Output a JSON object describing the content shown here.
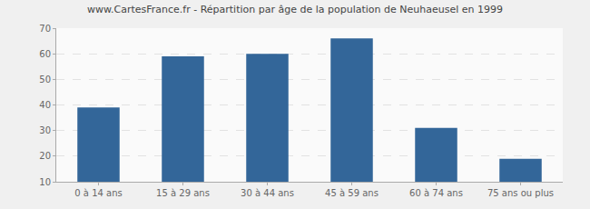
{
  "chart_data": {
    "type": "bar",
    "title": "www.CartesFrance.fr - Répartition par âge de la population de Neuhaeusel en 1999",
    "categories": [
      "0 à 14 ans",
      "15 à 29 ans",
      "30 à 44 ans",
      "45 à 59 ans",
      "60 à 74 ans",
      "75 ans ou plus"
    ],
    "values": [
      39,
      59,
      60,
      66,
      31,
      19
    ],
    "color": "#336699",
    "ylim": [
      10,
      70
    ],
    "yticks": [
      10,
      20,
      30,
      40,
      50,
      60,
      70
    ],
    "grid": true
  }
}
